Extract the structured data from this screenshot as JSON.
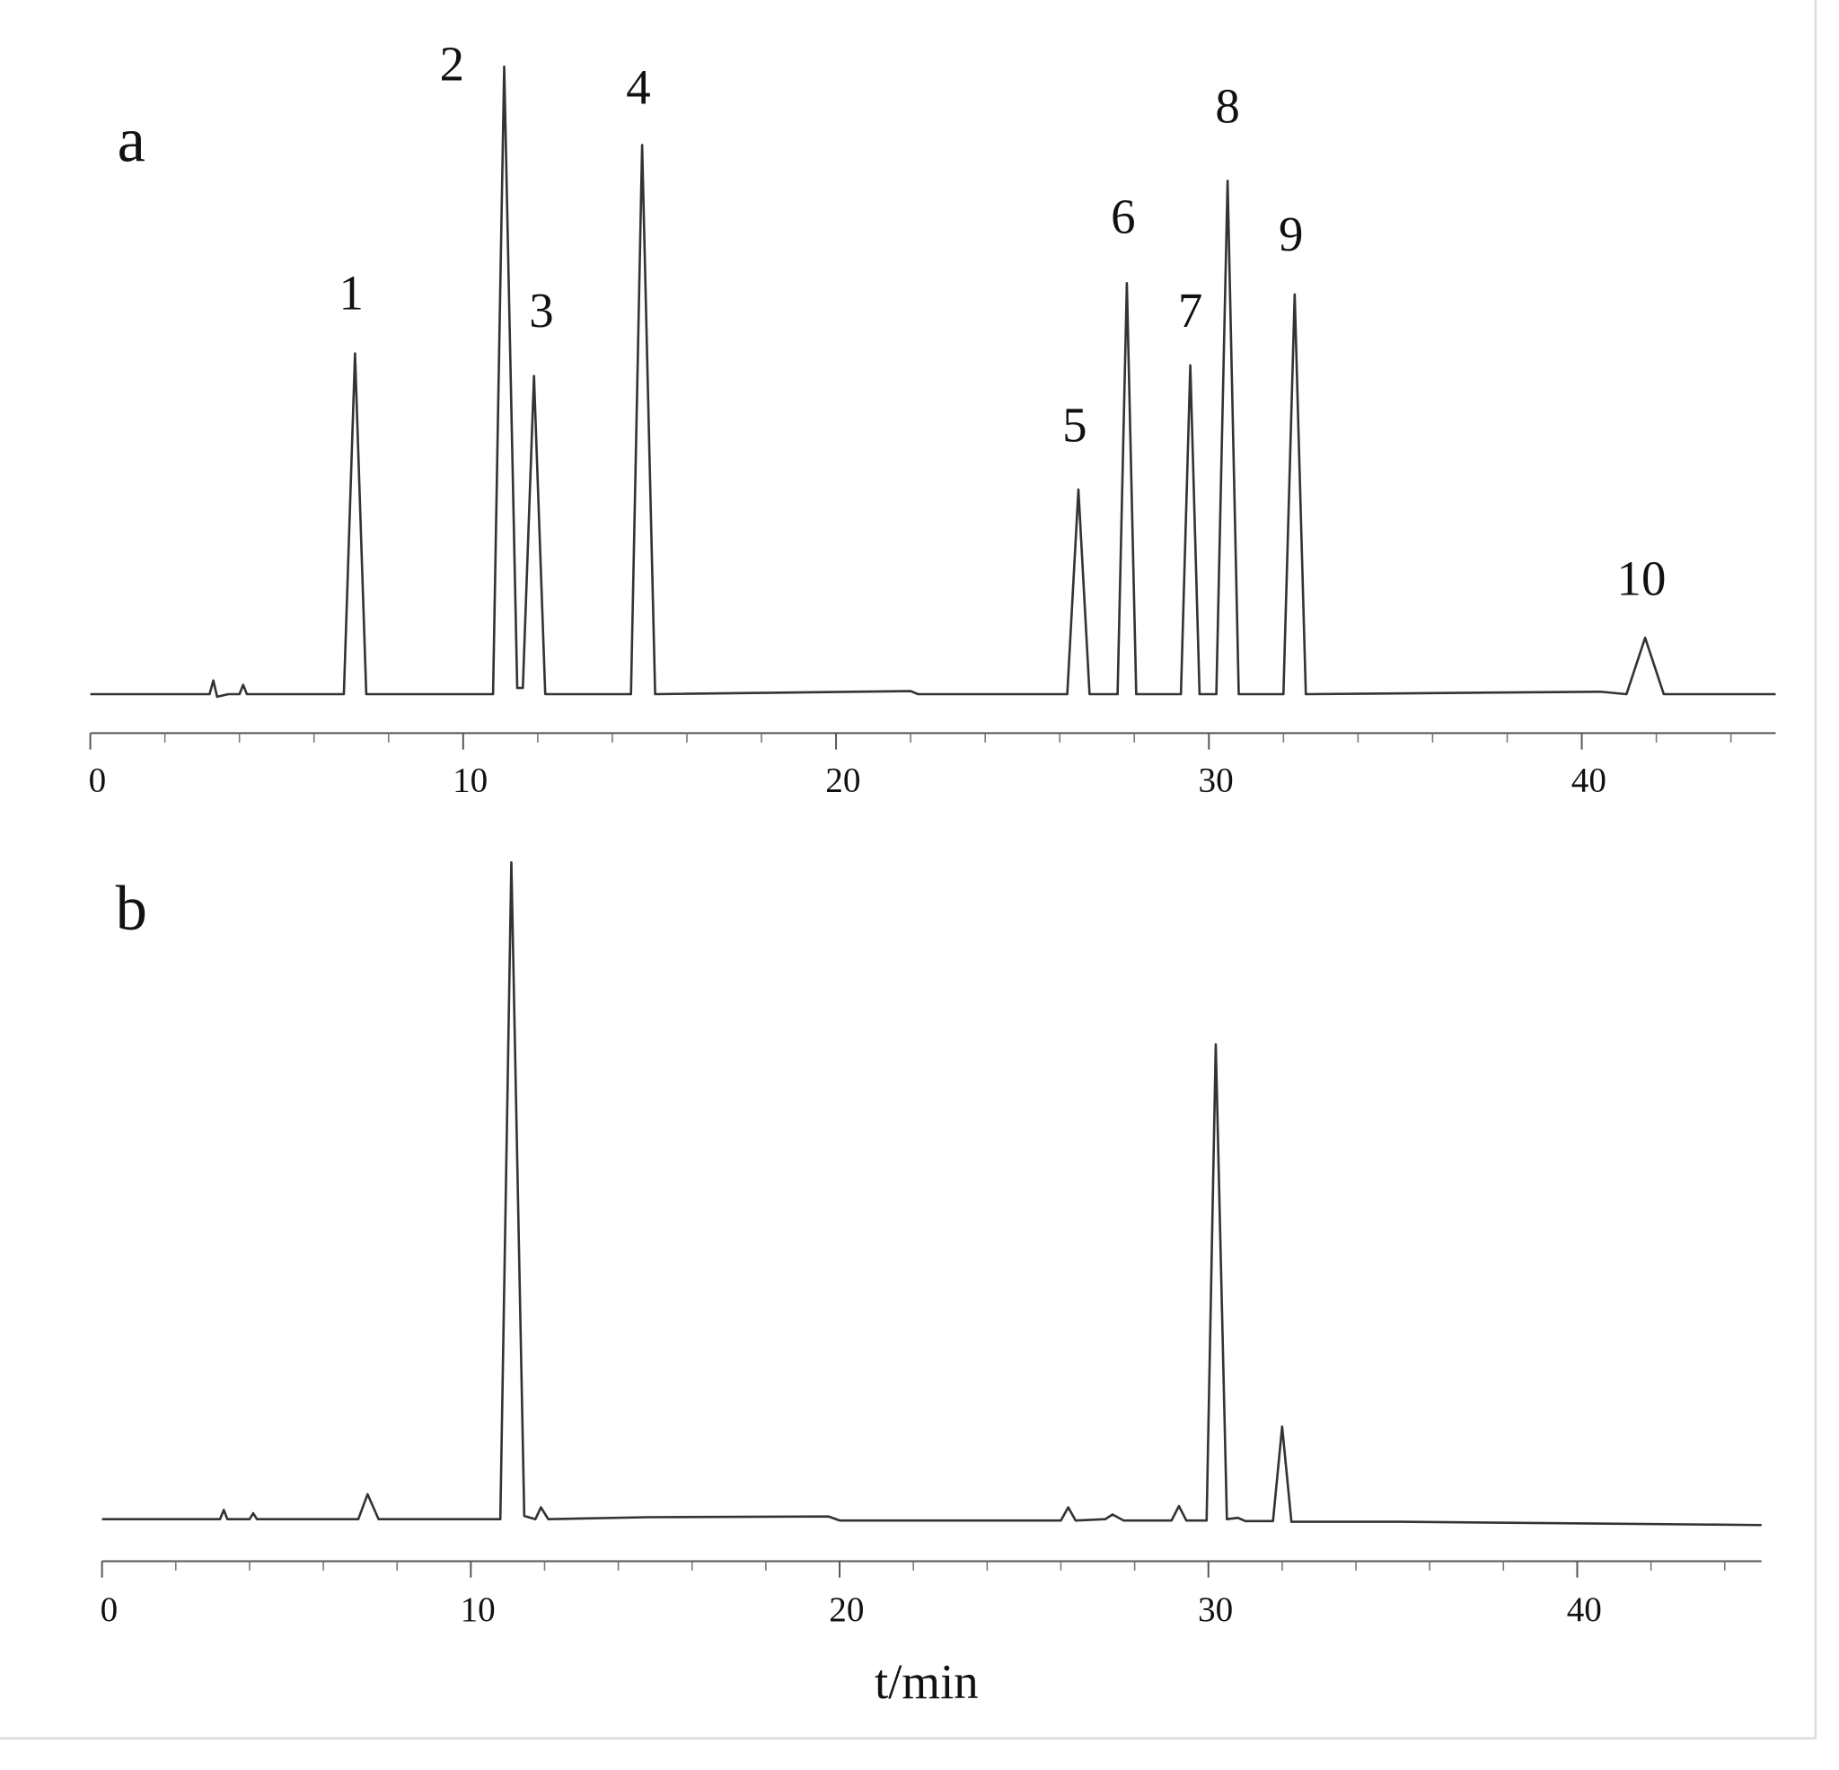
{
  "chart_data": [
    {
      "type": "line",
      "label": "a",
      "x": [
        0,
        2.5,
        3.2,
        3.3,
        3.4,
        3.7,
        4.0,
        4.1,
        4.2,
        6.8,
        7.1,
        7.4,
        10.8,
        11.1,
        11.45,
        11.6,
        11.9,
        12.2,
        14.5,
        14.8,
        15.15,
        22.0,
        22.2,
        26.2,
        26.5,
        26.8,
        27.55,
        27.8,
        28.05,
        29.25,
        29.5,
        29.75,
        30.2,
        30.5,
        30.8,
        32.0,
        32.3,
        32.6,
        40.5,
        41.2,
        41.7,
        42.2,
        45.2
      ],
      "values": [
        0,
        0,
        0,
        2.2,
        -0.4,
        0,
        0,
        1.5,
        0,
        0,
        54.3,
        0,
        0,
        100,
        1,
        1,
        50.7,
        0,
        0,
        87.5,
        0,
        0.5,
        0,
        0,
        32.6,
        0,
        0,
        65.5,
        0,
        0,
        52.4,
        0,
        0,
        81.8,
        0,
        0,
        63.7,
        0,
        0.4,
        0,
        9.0,
        0,
        0
      ],
      "color": "#333333",
      "xlim": [
        0,
        45.2
      ],
      "ylim": [
        -6.2,
        105
      ],
      "xticks": [
        0,
        10,
        20,
        30,
        40
      ],
      "xminorticks": [
        2,
        4,
        6,
        8,
        12,
        14,
        16,
        18,
        22,
        24,
        26,
        28,
        32,
        34,
        36,
        38,
        42,
        44
      ],
      "annotations": [
        {
          "text": "1",
          "x": 7.0,
          "y": 63.1
        },
        {
          "text": "2",
          "x": 9.7,
          "y": 99.6
        },
        {
          "text": "3",
          "x": 12.1,
          "y": 60.3
        },
        {
          "text": "4",
          "x": 14.7,
          "y": 95.9
        },
        {
          "text": "5",
          "x": 26.4,
          "y": 42.1
        },
        {
          "text": "6",
          "x": 27.7,
          "y": 75.3
        },
        {
          "text": "7",
          "x": 29.5,
          "y": 60.3
        },
        {
          "text": "8",
          "x": 30.5,
          "y": 92.9
        },
        {
          "text": "9",
          "x": 32.2,
          "y": 72.5
        },
        {
          "text": "10",
          "x": 41.6,
          "y": 17.6
        }
      ]
    },
    {
      "type": "line",
      "label": "b",
      "xlabel": "t/min",
      "x": [
        0,
        3.2,
        3.3,
        3.4,
        4.0,
        4.1,
        4.2,
        6.95,
        7.2,
        7.5,
        10.8,
        11.1,
        11.45,
        11.75,
        11.9,
        12.1,
        14.8,
        19.7,
        20.0,
        26.0,
        26.2,
        26.4,
        27.2,
        27.4,
        27.7,
        29.0,
        29.2,
        29.4,
        29.95,
        30.2,
        30.5,
        30.8,
        31.0,
        31.75,
        32.0,
        32.25,
        35.2,
        45.0
      ],
      "values": [
        0,
        0,
        1.4,
        0,
        0,
        0.9,
        0,
        0,
        3.8,
        0,
        0,
        100,
        0.5,
        0,
        1.8,
        0,
        0.3,
        0.4,
        -0.2,
        -0.2,
        1.8,
        -0.2,
        0,
        0.7,
        -0.2,
        -0.2,
        2.0,
        -0.2,
        -0.2,
        72.3,
        0,
        0.2,
        -0.3,
        -0.3,
        14.1,
        -0.4,
        -0.4,
        -0.9
      ],
      "color": "#333333",
      "xlim": [
        0,
        45
      ],
      "ylim": [
        -6.4,
        105.4
      ],
      "xticks": [
        0,
        10,
        20,
        30,
        40
      ],
      "xminorticks": [
        2,
        4,
        6,
        8,
        12,
        14,
        16,
        18,
        22,
        24,
        26,
        28,
        32,
        34,
        36,
        38,
        42,
        44
      ]
    }
  ]
}
